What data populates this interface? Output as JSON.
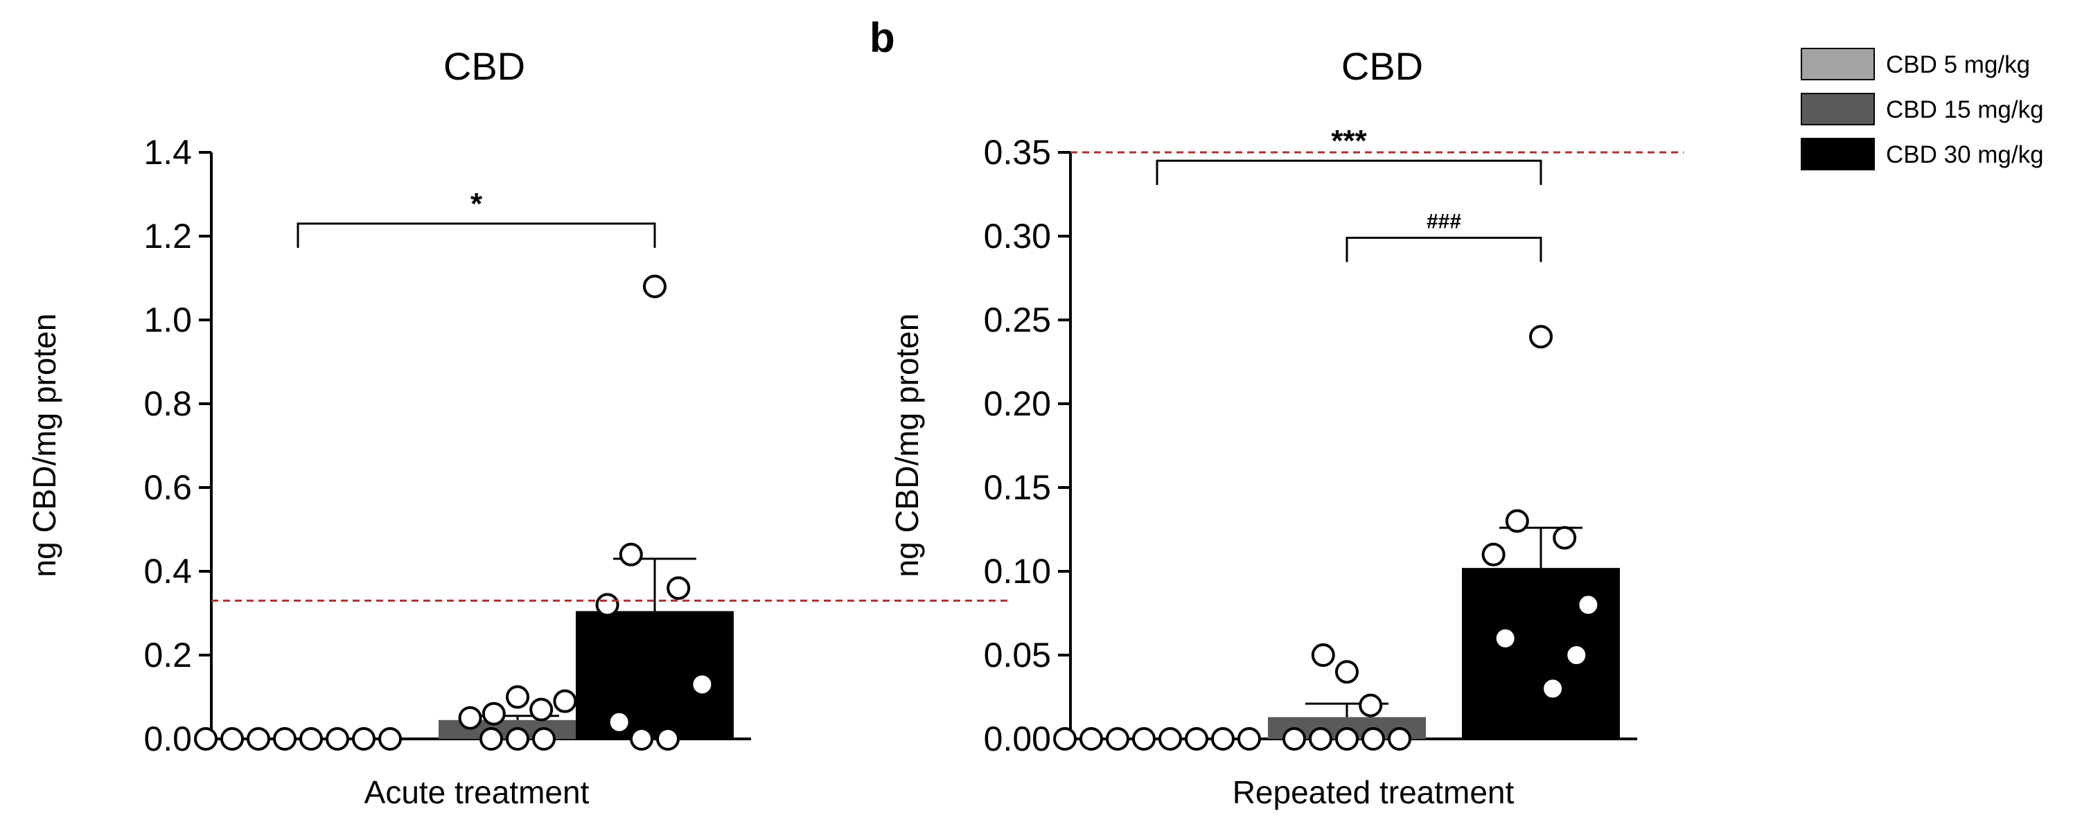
{
  "legend": {
    "items": [
      {
        "label": "CBD 5 mg/kg",
        "color": "#a3a3a3"
      },
      {
        "label": "CBD 15 mg/kg",
        "color": "#5a5a5a"
      },
      {
        "label": "CBD 30 mg/kg",
        "color": "#000000"
      }
    ]
  },
  "chart_data": [
    {
      "type": "bar",
      "panel_letter": "",
      "title": "CBD",
      "xlabel": "Acute treatment",
      "ylabel": "ng CBD/mg proten",
      "ylim": [
        0,
        1.4
      ],
      "yticks": [
        "0.0",
        "0.2",
        "0.4",
        "0.6",
        "0.8",
        "1.0",
        "1.2",
        "1.4"
      ],
      "yticks_values": [
        0,
        0.2,
        0.4,
        0.6,
        0.8,
        1.0,
        1.2,
        1.4
      ],
      "categories": [
        "CBD 5 mg/kg",
        "CBD 15 mg/kg",
        "CBD 30 mg/kg"
      ],
      "colors": [
        "#a3a3a3",
        "#5a5a5a",
        "#000000"
      ],
      "values": [
        0.0,
        0.045,
        0.305
      ],
      "error_upper": [
        0.0,
        0.055,
        0.43
      ],
      "points": [
        [
          0,
          0,
          0,
          0,
          0,
          0,
          0,
          0
        ],
        [
          0.1,
          0.06,
          0.07,
          0.05,
          0.09,
          0,
          0,
          0
        ],
        [
          1.08,
          0.44,
          0.36,
          0.32,
          0.13,
          0.04,
          0,
          0
        ]
      ],
      "threshold": 0.33,
      "significance": [
        {
          "from": 0,
          "to": 2,
          "label": "*",
          "y": 1.23
        }
      ]
    },
    {
      "type": "bar",
      "panel_letter": "b",
      "title": "CBD",
      "xlabel": "Repeated treatment",
      "ylabel": "ng CBD/mg proten",
      "ylim": [
        0,
        0.35
      ],
      "yticks": [
        "0.00",
        "0.05",
        "0.10",
        "0.15",
        "0.20",
        "0.25",
        "0.30",
        "0.35"
      ],
      "yticks_values": [
        0,
        0.05,
        0.1,
        0.15,
        0.2,
        0.25,
        0.3,
        0.35
      ],
      "categories": [
        "CBD 5 mg/kg",
        "CBD 15 mg/kg",
        "CBD 30 mg/kg"
      ],
      "colors": [
        "#a3a3a3",
        "#5a5a5a",
        "#000000"
      ],
      "values": [
        0.0,
        0.013,
        0.102
      ],
      "error_upper": [
        0.0,
        0.021,
        0.126
      ],
      "points": [
        [
          0,
          0,
          0,
          0,
          0,
          0,
          0,
          0
        ],
        [
          0.04,
          0.05,
          0.02,
          0,
          0,
          0,
          0,
          0
        ],
        [
          0.24,
          0.13,
          0.12,
          0.11,
          0.08,
          0.06,
          0.05,
          0.03
        ]
      ],
      "threshold": 0.35,
      "significance": [
        {
          "from": 0,
          "to": 2,
          "label": "***",
          "y": 0.345
        },
        {
          "from": 1,
          "to": 2,
          "label": "###",
          "y": 0.299
        }
      ]
    }
  ]
}
